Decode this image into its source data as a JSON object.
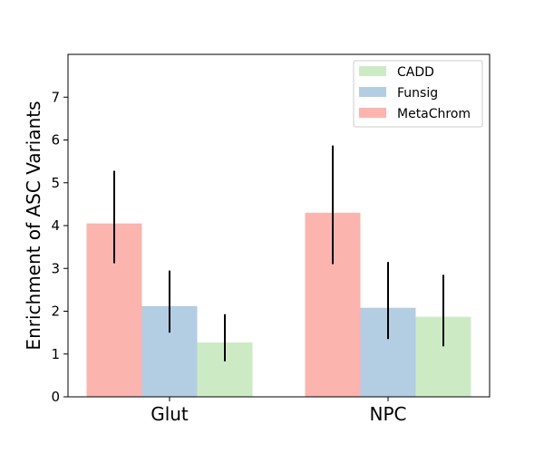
{
  "chart_data": {
    "type": "bar",
    "categories": [
      "Glut",
      "NPC"
    ],
    "series": [
      {
        "name": "MetaChrom",
        "color": "#fbb4ae",
        "values": [
          4.05,
          4.3
        ],
        "err_low": [
          3.12,
          3.1
        ],
        "err_high": [
          5.28,
          5.87
        ]
      },
      {
        "name": "Funsig",
        "color": "#b3cde3",
        "values": [
          2.12,
          2.08
        ],
        "err_low": [
          1.5,
          1.35
        ],
        "err_high": [
          2.95,
          3.15
        ]
      },
      {
        "name": "CADD",
        "color": "#ccebc5",
        "values": [
          1.27,
          1.87
        ],
        "err_low": [
          0.83,
          1.18
        ],
        "err_high": [
          1.93,
          2.85
        ]
      }
    ],
    "legend_order": [
      "CADD",
      "Funsig",
      "MetaChrom"
    ],
    "legend_position": "top-right",
    "title": "",
    "xlabel": "",
    "ylabel": "Enrichment of ASC Variants",
    "ylim": [
      0,
      8
    ],
    "yticks": [
      0,
      1,
      2,
      3,
      4,
      5,
      6,
      7
    ],
    "grid": false
  }
}
